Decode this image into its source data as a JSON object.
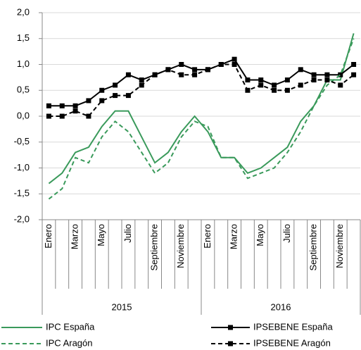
{
  "chart_data": {
    "type": "line",
    "categories": [
      "Enero",
      null,
      "Marzo",
      null,
      "Mayo",
      null,
      "Julio",
      null,
      "Septiembre",
      null,
      "Noviembre",
      null,
      "Enero",
      null,
      "Marzo",
      null,
      "Mayo",
      null,
      "Julio",
      null,
      "Septiembre",
      null,
      "Noviembre",
      null
    ],
    "groups": [
      "2015",
      "2016"
    ],
    "ylim": [
      -2,
      2
    ],
    "yticks": [
      {
        "value": -2,
        "label": "-2,0"
      },
      {
        "value": -1.5,
        "label": "-1,5"
      },
      {
        "value": -1,
        "label": "-1,0"
      },
      {
        "value": -0.5,
        "label": "-0,5"
      },
      {
        "value": 0,
        "label": "0,0"
      },
      {
        "value": 0.5,
        "label": "0,5"
      },
      {
        "value": 1,
        "label": "1,0"
      },
      {
        "value": 1.5,
        "label": "1,5"
      },
      {
        "value": 2,
        "label": "2,0"
      }
    ],
    "grid": true,
    "series": [
      {
        "name": "IPC España",
        "color": "#3a9a5b",
        "dash": false,
        "marker": null,
        "values": [
          -1.3,
          -1.1,
          -0.7,
          -0.6,
          -0.2,
          0.1,
          0.1,
          -0.4,
          -0.9,
          -0.7,
          -0.3,
          0.0,
          -0.3,
          -0.8,
          -0.8,
          -1.1,
          -1.0,
          -0.8,
          -0.6,
          -0.1,
          0.2,
          0.7,
          0.7,
          1.6
        ]
      },
      {
        "name": "IPSEBENE España",
        "color": "#000000",
        "dash": false,
        "marker": "square",
        "values": [
          0.2,
          0.2,
          0.2,
          0.3,
          0.5,
          0.6,
          0.8,
          0.7,
          0.8,
          0.9,
          1.0,
          0.9,
          0.9,
          1.0,
          1.1,
          0.7,
          0.7,
          0.6,
          0.7,
          0.9,
          0.8,
          0.8,
          0.8,
          1.0
        ]
      },
      {
        "name": "IPC Aragón",
        "color": "#3a9a5b",
        "dash": true,
        "marker": null,
        "values": [
          -1.6,
          -1.4,
          -0.8,
          -0.9,
          -0.4,
          -0.1,
          -0.3,
          -0.7,
          -1.1,
          -0.9,
          -0.4,
          -0.1,
          -0.2,
          -0.8,
          -0.8,
          -1.2,
          -1.1,
          -1.0,
          -0.7,
          -0.3,
          0.2,
          0.6,
          0.8,
          1.5
        ]
      },
      {
        "name": "IPSEBENE Aragón",
        "color": "#000000",
        "dash": true,
        "marker": "square",
        "values": [
          0.0,
          0.0,
          0.1,
          0.0,
          0.3,
          0.4,
          0.4,
          0.6,
          0.8,
          0.9,
          0.8,
          0.8,
          0.9,
          1.0,
          1.0,
          0.5,
          0.6,
          0.5,
          0.5,
          0.6,
          0.7,
          0.7,
          0.6,
          0.8
        ]
      }
    ]
  }
}
